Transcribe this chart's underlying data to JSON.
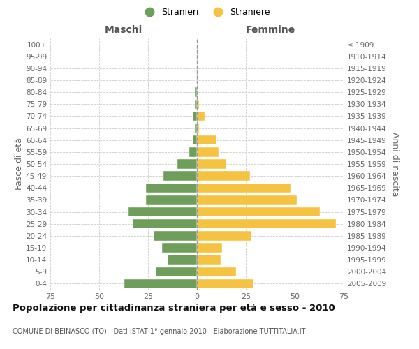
{
  "age_groups": [
    "0-4",
    "5-9",
    "10-14",
    "15-19",
    "20-24",
    "25-29",
    "30-34",
    "35-39",
    "40-44",
    "45-49",
    "50-54",
    "55-59",
    "60-64",
    "65-69",
    "70-74",
    "75-79",
    "80-84",
    "85-89",
    "90-94",
    "95-99",
    "100+"
  ],
  "birth_years": [
    "2005-2009",
    "2000-2004",
    "1995-1999",
    "1990-1994",
    "1985-1989",
    "1980-1984",
    "1975-1979",
    "1970-1974",
    "1965-1969",
    "1960-1964",
    "1955-1959",
    "1950-1954",
    "1945-1949",
    "1940-1944",
    "1935-1939",
    "1930-1934",
    "1925-1929",
    "1920-1924",
    "1915-1919",
    "1910-1914",
    "≤ 1909"
  ],
  "maschi": [
    37,
    21,
    15,
    18,
    22,
    33,
    35,
    26,
    26,
    17,
    10,
    4,
    2,
    1,
    2,
    1,
    1,
    0,
    0,
    0,
    0
  ],
  "femmine": [
    29,
    20,
    12,
    13,
    28,
    71,
    63,
    51,
    48,
    27,
    15,
    11,
    10,
    1,
    4,
    1,
    0,
    0,
    0,
    0,
    0
  ],
  "color_maschi": "#6d9e5a",
  "color_femmine": "#f5c242",
  "background_color": "#ffffff",
  "grid_color": "#cccccc",
  "title": "Popolazione per cittadinanza straniera per età e sesso - 2010",
  "subtitle": "COMUNE DI BEINASCO (TO) - Dati ISTAT 1° gennaio 2010 - Elaborazione TUTTITALIA.IT",
  "ylabel_left": "Fasce di età",
  "ylabel_right": "Anni di nascita",
  "xlabel_left": "Maschi",
  "xlabel_right": "Femmine",
  "legend_maschi": "Stranieri",
  "legend_femmine": "Straniere",
  "xlim": 75
}
